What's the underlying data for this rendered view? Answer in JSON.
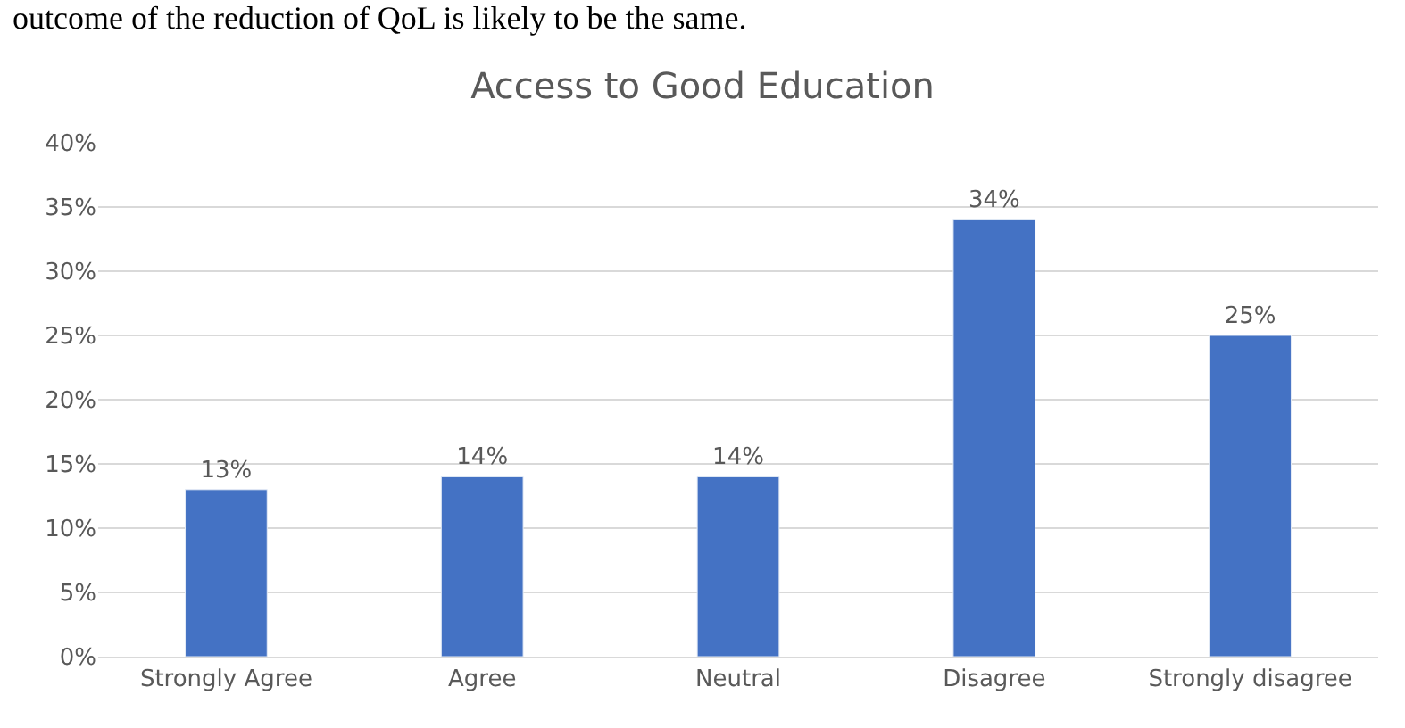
{
  "chart_data": {
    "type": "bar",
    "title": "Access to Good Education",
    "categories": [
      "Strongly Agree",
      "Agree",
      "Neutral",
      "Disagree",
      "Strongly disagree"
    ],
    "values": [
      13,
      14,
      14,
      34,
      25
    ],
    "color": "#4472c4",
    "value_labels": [
      "13%",
      "14%",
      "14%",
      "34%",
      "25%"
    ],
    "ylim": [
      0,
      40
    ],
    "yticks": [
      {
        "value": 0,
        "label": "0%"
      },
      {
        "value": 5,
        "label": "5%"
      },
      {
        "value": 10,
        "label": "10%"
      },
      {
        "value": 15,
        "label": "15%"
      },
      {
        "value": 20,
        "label": "20%"
      },
      {
        "value": 25,
        "label": "25%"
      },
      {
        "value": 30,
        "label": "30%"
      },
      {
        "value": 35,
        "label": "35%"
      },
      {
        "value": 40,
        "label": "40%"
      }
    ],
    "grid": "y",
    "annotations": [
      "outcome of the reduction of QoL is likely to be the same."
    ]
  }
}
